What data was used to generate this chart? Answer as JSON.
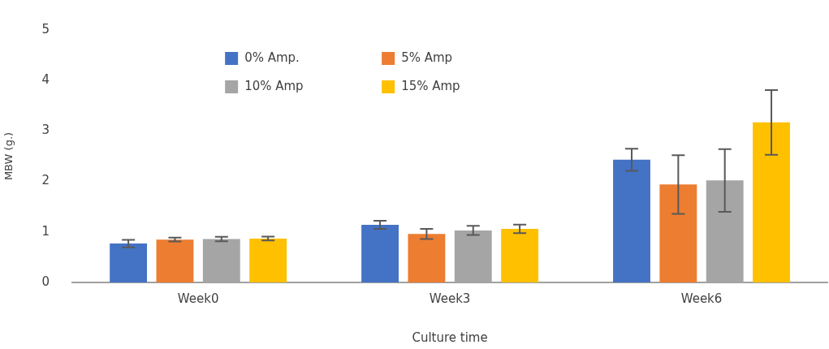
{
  "chart_data": {
    "type": "bar",
    "xlabel": "Culture time",
    "ylabel": "MBW (g.)",
    "categories": [
      "Week0",
      "Week3",
      "Week6"
    ],
    "series": [
      {
        "name": "0% Amp.",
        "color": "#4472c4",
        "values": [
          0.77,
          1.14,
          2.43
        ],
        "errors": [
          0.075,
          0.08,
          0.22
        ]
      },
      {
        "name": "5% Amp",
        "color": "#ed7d31",
        "values": [
          0.85,
          0.96,
          1.94
        ],
        "errors": [
          0.04,
          0.1,
          0.58
        ]
      },
      {
        "name": "10% Amp",
        "color": "#a5a5a5",
        "values": [
          0.86,
          1.03,
          2.02
        ],
        "errors": [
          0.045,
          0.09,
          0.62
        ]
      },
      {
        "name": "15% Amp",
        "color": "#ffc000",
        "values": [
          0.87,
          1.06,
          3.17
        ],
        "errors": [
          0.04,
          0.085,
          0.64
        ]
      }
    ],
    "ylim": [
      0,
      5
    ],
    "yticks": [
      0,
      1,
      2,
      3,
      4,
      5
    ],
    "grid": false,
    "legend": "top"
  }
}
